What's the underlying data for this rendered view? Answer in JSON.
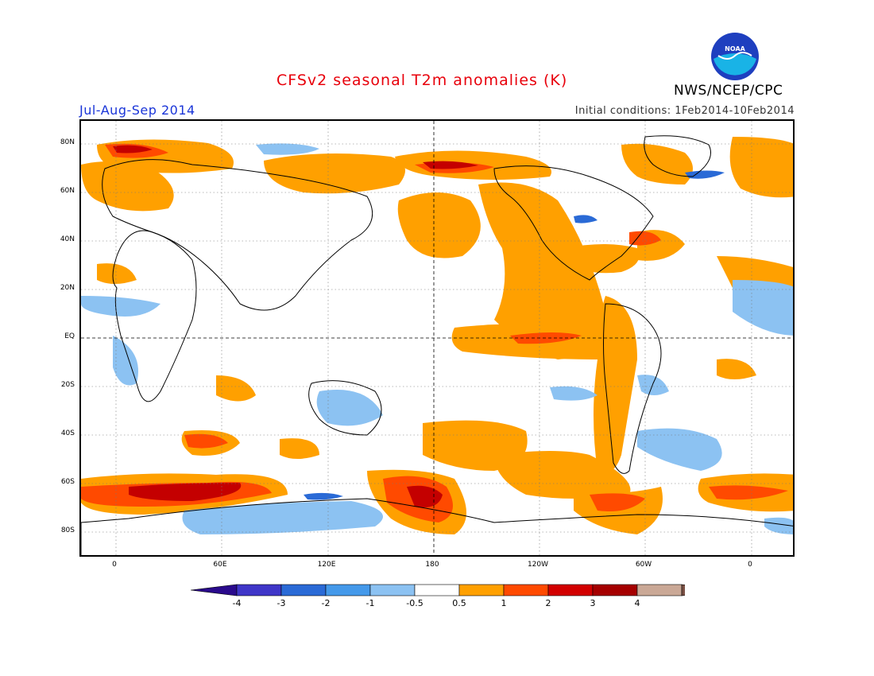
{
  "header": {
    "title": "CFSv2 seasonal T2m anomalies (K)",
    "season": "Jul-Aug-Sep 2014",
    "initial_conditions": "Initial conditions: 1Feb2014-10Feb2014",
    "organization": "NWS/NCEP/CPC",
    "logo_text": "NOAA"
  },
  "map": {
    "lat_labels": [
      "80N",
      "60N",
      "40N",
      "20N",
      "EQ",
      "20S",
      "40S",
      "60S",
      "80S"
    ],
    "lon_labels": [
      "0",
      "60E",
      "120E",
      "180",
      "120W",
      "60W",
      "0"
    ]
  },
  "colorbar": {
    "labels": [
      "-4",
      "-3",
      "-2",
      "-1",
      "-0.5",
      "0.5",
      "1",
      "2",
      "3",
      "4"
    ],
    "colors": [
      "#2a0a8c",
      "#3f36c8",
      "#2a6ad6",
      "#4499ea",
      "#8cc2f2",
      "#ffffff",
      "#ffa000",
      "#ff4a00",
      "#d20000",
      "#a50000",
      "#caa896",
      "#7a5044"
    ]
  }
}
